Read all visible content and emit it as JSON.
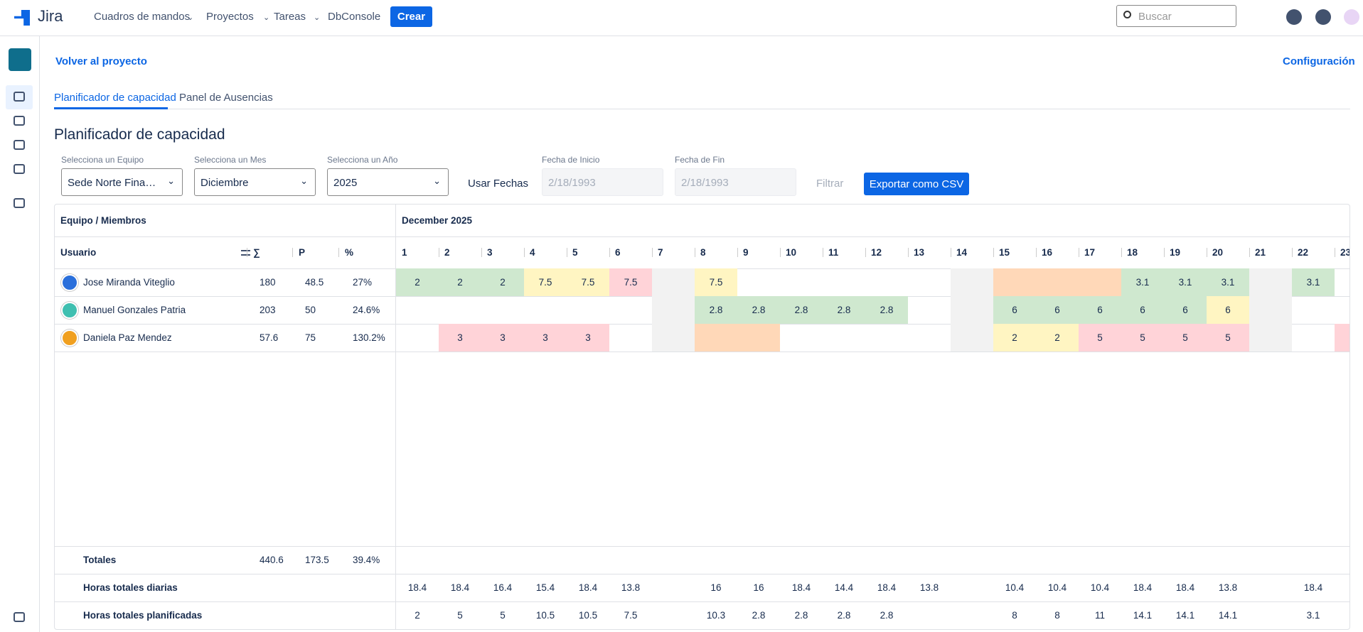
{
  "nav": {
    "logo": "Jira",
    "items": [
      "Cuadros de mandos",
      "Proyectos",
      "Tareas",
      "DbConsole"
    ],
    "create": "Crear",
    "search": "Buscar"
  },
  "back": "Volver al proyecto",
  "config": "Configuración",
  "tabs": [
    "Planificador de capacidad",
    "Panel de Ausencias"
  ],
  "heading": "Planificador de capacidad",
  "filters": {
    "team_label": "Selecciona un Equipo",
    "team": "Sede Norte Fina…",
    "month_label": "Selecciona un Mes",
    "month": "Diciembre",
    "year_label": "Selecciona un Año",
    "year": "2025",
    "use_dates": "Usar Fechas",
    "start_label": "Fecha de Inicio",
    "start": "2/18/1993",
    "end_label": "Fecha de Fin",
    "end": "2/18/1993",
    "filter": "Filtrar",
    "export": "Exportar como CSV"
  },
  "table": {
    "group": "Equipo / Miembros",
    "month": "December 2025",
    "columns": [
      "Usuario",
      "∑",
      "P",
      "%"
    ],
    "days": [
      1,
      2,
      3,
      4,
      5,
      6,
      7,
      8,
      9,
      10,
      11,
      12,
      13,
      14,
      15,
      16,
      17,
      18,
      19,
      20,
      21,
      22,
      23
    ],
    "rows": [
      {
        "name": "Jose Miranda Viteglio",
        "avatar": "#2a6fdb",
        "sum": 180,
        "p": 48.5,
        "pct": "27%",
        "values": [
          2,
          2,
          2,
          7.5,
          7.5,
          7.5,
          null,
          7.5,
          null,
          null,
          null,
          null,
          null,
          null,
          null,
          null,
          null,
          3.1,
          3.1,
          3.1,
          null,
          3.1,
          null
        ],
        "colors": [
          "#cfe8cf",
          "#cfe8cf",
          "#cfe8cf",
          "#fff5c2",
          "#fff5c2",
          "#ffd3d8",
          "#f2f2f2",
          "#fff5c2",
          null,
          null,
          null,
          null,
          null,
          "#f2f2f2",
          "#ffd8b8",
          "#ffd8b8",
          "#ffd8b8",
          "#cfe8cf",
          "#cfe8cf",
          "#cfe8cf",
          "#f2f2f2",
          "#cfe8cf",
          null
        ]
      },
      {
        "name": "Manuel Gonzales Patria",
        "avatar": "#3fbfb0",
        "sum": 203,
        "p": 50,
        "pct": "24.6%",
        "values": [
          null,
          null,
          null,
          null,
          null,
          null,
          null,
          2.8,
          2.8,
          2.8,
          2.8,
          2.8,
          null,
          null,
          6,
          6,
          6,
          6,
          6,
          6,
          null,
          null,
          null
        ],
        "colors": [
          null,
          null,
          null,
          null,
          null,
          null,
          "#f2f2f2",
          "#cfe8cf",
          "#cfe8cf",
          "#cfe8cf",
          "#cfe8cf",
          "#cfe8cf",
          null,
          "#f2f2f2",
          "#cfe8cf",
          "#cfe8cf",
          "#cfe8cf",
          "#cfe8cf",
          "#cfe8cf",
          "#fff5c2",
          "#f2f2f2",
          null,
          null
        ]
      },
      {
        "name": "Daniela Paz Mendez",
        "avatar": "#f0a020",
        "sum": 57.6,
        "p": 75,
        "pct": "130.2%",
        "values": [
          null,
          3,
          3,
          3,
          3,
          null,
          null,
          null,
          null,
          null,
          null,
          null,
          null,
          null,
          2,
          2,
          5,
          5,
          5,
          5,
          null,
          null,
          null
        ],
        "colors": [
          null,
          "#ffd3d8",
          "#ffd3d8",
          "#ffd3d8",
          "#ffd3d8",
          null,
          "#f2f2f2",
          "#ffd8b8",
          "#ffd8b8",
          null,
          null,
          null,
          null,
          "#f2f2f2",
          "#fff5c2",
          "#fff5c2",
          "#ffd3d8",
          "#ffd3d8",
          "#ffd3d8",
          "#ffd3d8",
          "#f2f2f2",
          null,
          "#ffd3d8"
        ]
      }
    ],
    "totals": {
      "label": "Totales",
      "sum": 440.6,
      "p": 173.5,
      "pct": "39.4%"
    },
    "daily": {
      "label": "Horas totales diarias",
      "values": [
        18.4,
        18.4,
        16.4,
        15.4,
        18.4,
        13.8,
        null,
        16,
        16,
        18.4,
        14.4,
        18.4,
        13.8,
        null,
        10.4,
        10.4,
        10.4,
        18.4,
        18.4,
        13.8,
        null,
        18.4,
        null
      ]
    },
    "planned": {
      "label": "Horas totales planificadas",
      "values": [
        2,
        5,
        5,
        10.5,
        10.5,
        7.5,
        null,
        10.3,
        2.8,
        2.8,
        2.8,
        2.8,
        null,
        null,
        8,
        8,
        11,
        14.1,
        14.1,
        14.1,
        null,
        3.1,
        null
      ]
    }
  }
}
